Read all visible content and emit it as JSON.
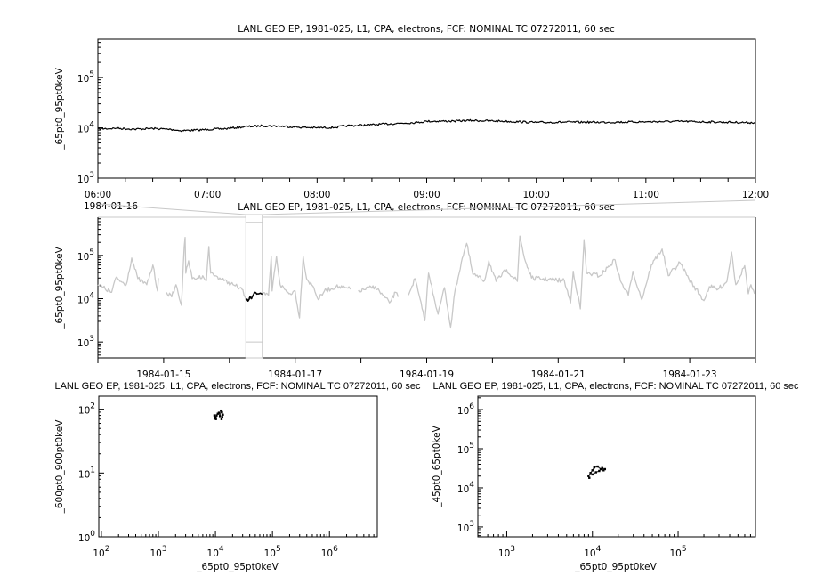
{
  "chart_data": [
    {
      "type": "line",
      "title": "LANL GEO EP, 1981-025, L1, CPA, electrons, FCF: NOMINAL TC 07272011, 60 sec",
      "ylabel": "_65pt0_95pt0keV",
      "xlabel": "",
      "yscale": "log",
      "ylim": [
        1000,
        580000
      ],
      "y_ticks": [
        {
          "base": "10",
          "exp": "3",
          "value": 1000
        },
        {
          "base": "10",
          "exp": "4",
          "value": 10000
        },
        {
          "base": "10",
          "exp": "5",
          "value": 100000
        }
      ],
      "xlim": [
        "1984-01-16 06:00",
        "1984-01-16 12:00"
      ],
      "x_ticks": [
        {
          "label": "06:00",
          "t": "1984-01-16 06:00"
        },
        {
          "label": "07:00",
          "t": "1984-01-16 07:00"
        },
        {
          "label": "08:00",
          "t": "1984-01-16 08:00"
        },
        {
          "label": "09:00",
          "t": "1984-01-16 09:00"
        },
        {
          "label": "10:00",
          "t": "1984-01-16 10:00"
        },
        {
          "label": "11:00",
          "t": "1984-01-16 11:00"
        },
        {
          "label": "12:00",
          "t": "1984-01-16 12:00"
        }
      ],
      "date_label": "1984-01-16",
      "color": "#000000",
      "points": [
        [
          "1984-01-16 06:00",
          9500
        ],
        [
          "1984-01-16 06:10",
          9800
        ],
        [
          "1984-01-16 06:20",
          9400
        ],
        [
          "1984-01-16 06:30",
          9700
        ],
        [
          "1984-01-16 06:40",
          9300
        ],
        [
          "1984-01-16 06:45",
          8800
        ],
        [
          "1984-01-16 06:55",
          9000
        ],
        [
          "1984-01-16 07:00",
          9300
        ],
        [
          "1984-01-16 07:10",
          9600
        ],
        [
          "1984-01-16 07:20",
          10500
        ],
        [
          "1984-01-16 07:30",
          11000
        ],
        [
          "1984-01-16 07:40",
          10800
        ],
        [
          "1984-01-16 07:50",
          10300
        ],
        [
          "1984-01-16 08:00",
          10000
        ],
        [
          "1984-01-16 08:10",
          10200
        ],
        [
          "1984-01-16 08:15",
          10900
        ],
        [
          "1984-01-16 08:30",
          11500
        ],
        [
          "1984-01-16 08:45",
          12300
        ],
        [
          "1984-01-16 08:55",
          12800
        ],
        [
          "1984-01-16 09:00",
          13500
        ],
        [
          "1984-01-16 09:15",
          13600
        ],
        [
          "1984-01-16 09:25",
          14000
        ],
        [
          "1984-01-16 09:40",
          13600
        ],
        [
          "1984-01-16 10:00",
          12800
        ],
        [
          "1984-01-16 10:20",
          13000
        ],
        [
          "1984-01-16 10:40",
          12900
        ],
        [
          "1984-01-16 11:00",
          13200
        ],
        [
          "1984-01-16 11:20",
          13400
        ],
        [
          "1984-01-16 11:40",
          13000
        ],
        [
          "1984-01-16 12:00",
          12700
        ]
      ]
    },
    {
      "type": "line",
      "title": "LANL GEO EP, 1981-025, L1, CPA, electrons, FCF: NOMINAL TC 07272011, 60 sec",
      "ylabel": "_65pt0_95pt0keV",
      "xlabel": "",
      "yscale": "log",
      "ylim": [
        430,
        760000
      ],
      "y_ticks": [
        {
          "base": "10",
          "exp": "3",
          "value": 1000
        },
        {
          "base": "10",
          "exp": "4",
          "value": 10000
        },
        {
          "base": "10",
          "exp": "5",
          "value": 100000
        }
      ],
      "xlim": [
        "1984-01-14 00:00",
        "1984-01-24 00:00"
      ],
      "x_ticks": [
        {
          "label": "1984-01-15",
          "t": "1984-01-15 00:00"
        },
        {
          "label": "1984-01-17",
          "t": "1984-01-17 00:00"
        },
        {
          "label": "1984-01-19",
          "t": "1984-01-19 00:00"
        },
        {
          "label": "1984-01-21",
          "t": "1984-01-21 00:00"
        },
        {
          "label": "1984-01-23",
          "t": "1984-01-23 00:00"
        }
      ],
      "color": "#c8c8c8",
      "highlight_color": "#000000",
      "highlight_range": [
        "1984-01-16 06:00",
        "1984-01-16 12:00"
      ],
      "points": [
        [
          "1984-01-14 00:00",
          21000
        ],
        [
          "1984-01-14 05:00",
          14000
        ],
        [
          "1984-01-14 06:30",
          30000
        ],
        [
          "1984-01-14 10:20",
          21000
        ],
        [
          "1984-01-14 12:20",
          87000
        ],
        [
          "1984-01-14 14:35",
          29000
        ],
        [
          "1984-01-14 17:50",
          21000
        ],
        [
          "1984-01-14 20:05",
          60000
        ],
        [
          "1984-01-14 21:45",
          15000
        ],
        [
          "1984-01-14 22:05",
          30000
        ],
        null,
        [
          "1984-01-15 01:00",
          14000
        ],
        [
          "1984-01-15 02:55",
          11000
        ],
        [
          "1984-01-15 04:30",
          21000
        ],
        [
          "1984-01-15 06:30",
          7000
        ],
        [
          "1984-01-15 07:30",
          160000
        ],
        [
          "1984-01-15 07:50",
          260000
        ],
        [
          "1984-01-15 08:05",
          39000
        ],
        [
          "1984-01-15 09:05",
          75000
        ],
        [
          "1984-01-15 10:25",
          29000
        ],
        [
          "1984-01-15 12:20",
          30000
        ],
        [
          "1984-01-15 14:15",
          34000
        ],
        [
          "1984-01-15 15:35",
          26000
        ],
        [
          "1984-01-15 16:30",
          160000
        ],
        [
          "1984-01-15 17:10",
          39000
        ],
        [
          "1984-01-15 18:50",
          34000
        ],
        [
          "1984-01-15 22:05",
          26000
        ],
        [
          "1984-01-16 01:20",
          21000
        ],
        [
          "1984-01-16 04:35",
          16500
        ],
        [
          "1984-01-16 06:00",
          9500
        ],
        [
          "1984-01-16 12:00",
          12700
        ],
        [
          "1984-01-16 14:15",
          12000
        ],
        [
          "1984-01-16 15:15",
          95000
        ],
        [
          "1984-01-16 15:35",
          15000
        ],
        [
          "1984-01-16 17:10",
          95000
        ],
        [
          "1984-01-16 18:30",
          21000
        ],
        [
          "1984-01-16 21:45",
          13000
        ],
        [
          "1984-01-17 00:00",
          15000
        ],
        [
          "1984-01-17 01:35",
          3600
        ],
        [
          "1984-01-17 02:55",
          95000
        ],
        [
          "1984-01-17 04:10",
          29000
        ],
        [
          "1984-01-17 06:50",
          18000
        ],
        [
          "1984-01-17 08:25",
          9500
        ],
        [
          "1984-01-17 10:40",
          15000
        ],
        [
          "1984-01-17 14:55",
          19000
        ],
        [
          "1984-01-17 20:25",
          16500
        ],
        null,
        [
          "1984-01-17 23:00",
          15000
        ],
        [
          "1984-01-18 05:10",
          19000
        ],
        [
          "1984-01-18 10:25",
          8000
        ],
        [
          "1984-01-18 12:40",
          14000
        ],
        [
          "1984-01-18 13:35",
          11000
        ],
        null,
        [
          "1984-01-18 17:10",
          12000
        ],
        [
          "1984-01-18 19:45",
          29000
        ],
        [
          "1984-01-18 22:20",
          5800
        ],
        [
          "1984-01-18 23:20",
          3100
        ],
        [
          "1984-01-19 00:40",
          39000
        ],
        [
          "1984-01-19 04:10",
          4400
        ],
        [
          "1984-01-19 06:30",
          18000
        ],
        [
          "1984-01-19 08:45",
          2200
        ],
        [
          "1984-01-19 10:20",
          15000
        ],
        [
          "1984-01-19 13:00",
          87000
        ],
        [
          "1984-01-19 14:35",
          190000
        ],
        [
          "1984-01-19 16:50",
          37000
        ],
        [
          "1984-01-19 21:05",
          26000
        ],
        [
          "1984-01-19 22:40",
          75000
        ],
        [
          "1984-01-20 01:20",
          25000
        ],
        [
          "1984-01-20 05:10",
          47000
        ],
        [
          "1984-01-20 09:05",
          25000
        ],
        [
          "1984-01-20 10:00",
          280000
        ],
        [
          "1984-01-20 11:40",
          87000
        ],
        [
          "1984-01-20 14:15",
          30000
        ],
        [
          "1984-01-21 02:15",
          26000
        ],
        [
          "1984-01-21 04:30",
          8000
        ],
        [
          "1984-01-21 05:30",
          43000
        ],
        [
          "1984-01-21 08:05",
          5800
        ],
        [
          "1984-01-21 09:25",
          220000
        ],
        [
          "1984-01-21 10:20",
          39000
        ],
        [
          "1984-01-21 15:15",
          34000
        ],
        [
          "1984-01-21 20:45",
          79000
        ],
        [
          "1984-01-21 22:40",
          26000
        ],
        [
          "1984-01-22 01:35",
          12000
        ],
        [
          "1984-01-22 03:15",
          43000
        ],
        [
          "1984-01-22 06:30",
          9500
        ],
        [
          "1984-01-22 10:00",
          60000
        ],
        [
          "1984-01-22 13:55",
          140000
        ],
        [
          "1984-01-22 16:10",
          34000
        ],
        [
          "1984-01-22 20:25",
          68000
        ],
        [
          "1984-01-22 23:40",
          29000
        ],
        [
          "1984-01-23 05:10",
          9000
        ],
        [
          "1984-01-23 07:10",
          19000
        ],
        [
          "1984-01-23 10:20",
          16500
        ],
        [
          "1984-01-23 13:35",
          25000
        ],
        [
          "1984-01-23 15:15",
          120000
        ],
        [
          "1984-01-23 16:50",
          21000
        ],
        [
          "1984-01-23 20:05",
          58000
        ],
        [
          "1984-01-23 21:25",
          13000
        ],
        [
          "1984-01-23 22:20",
          21000
        ],
        [
          "1984-01-23 23:40",
          13000
        ]
      ]
    },
    {
      "type": "scatter",
      "title": "LANL GEO EP, 1981-025, L1, CPA, electrons, FCF: NOMINAL TC 07272011, 60 sec",
      "xlabel": "_65pt0_95pt0keV",
      "ylabel": "_600pt0_900pt0keV",
      "xscale": "log",
      "yscale": "log",
      "xlim": [
        90,
        6900000
      ],
      "ylim": [
        1,
        160
      ],
      "x_ticks": [
        {
          "base": "10",
          "exp": "2",
          "value": 100
        },
        {
          "base": "10",
          "exp": "3",
          "value": 1000
        },
        {
          "base": "10",
          "exp": "4",
          "value": 10000
        },
        {
          "base": "10",
          "exp": "5",
          "value": 100000
        },
        {
          "base": "10",
          "exp": "6",
          "value": 1000000
        }
      ],
      "y_ticks": [
        {
          "base": "10",
          "exp": "0",
          "value": 1
        },
        {
          "base": "10",
          "exp": "1",
          "value": 10
        },
        {
          "base": "10",
          "exp": "2",
          "value": 100
        }
      ],
      "color": "#000000",
      "points": [
        [
          9600,
          80
        ],
        [
          10000,
          75
        ],
        [
          9800,
          72
        ],
        [
          10200,
          70
        ],
        [
          10500,
          80
        ],
        [
          11000,
          85
        ],
        [
          11500,
          88
        ],
        [
          12000,
          78
        ],
        [
          12500,
          95
        ],
        [
          13000,
          90
        ],
        [
          13500,
          82
        ],
        [
          13200,
          75
        ],
        [
          12800,
          70
        ]
      ]
    },
    {
      "type": "scatter",
      "title": "LANL GEO EP, 1981-025, L1, CPA, electrons, FCF: NOMINAL TC 07272011, 60 sec",
      "xlabel": "_65pt0_95pt0keV",
      "ylabel": "_45pt0_65pt0keV",
      "xscale": "log",
      "yscale": "log",
      "xlim": [
        460,
        800000
      ],
      "ylim": [
        560,
        2200000
      ],
      "x_ticks": [
        {
          "base": "10",
          "exp": "3",
          "value": 1000
        },
        {
          "base": "10",
          "exp": "4",
          "value": 10000
        },
        {
          "base": "10",
          "exp": "5",
          "value": 100000
        }
      ],
      "y_ticks": [
        {
          "base": "10",
          "exp": "3",
          "value": 1000
        },
        {
          "base": "10",
          "exp": "4",
          "value": 10000
        },
        {
          "base": "10",
          "exp": "5",
          "value": 100000
        },
        {
          "base": "10",
          "exp": "6",
          "value": 1000000
        }
      ],
      "color": "#000000",
      "points": [
        [
          9200,
          18000
        ],
        [
          9000,
          20000
        ],
        [
          9500,
          24000
        ],
        [
          10000,
          28000
        ],
        [
          10500,
          33000
        ],
        [
          11500,
          35000
        ],
        [
          12500,
          30000
        ],
        [
          13500,
          28000
        ],
        [
          14000,
          30000
        ],
        [
          13000,
          32000
        ],
        [
          12000,
          27000
        ],
        [
          11000,
          25000
        ],
        [
          10000,
          22000
        ]
      ]
    }
  ]
}
